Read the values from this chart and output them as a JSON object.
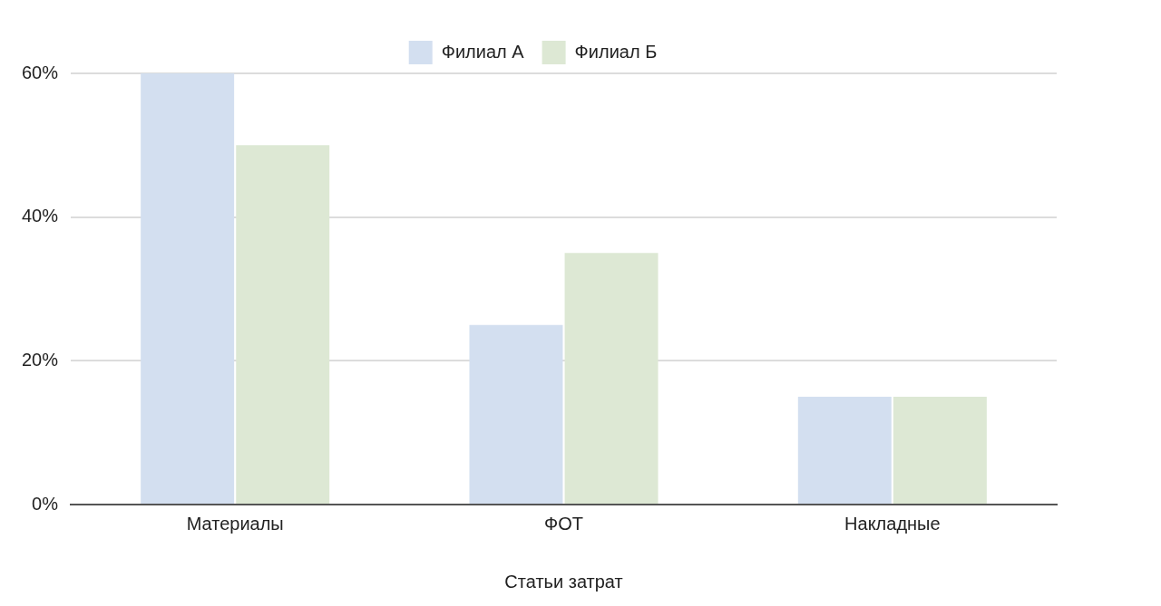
{
  "chart_data": {
    "type": "bar",
    "xlabel": "Статьи затрат",
    "categories": [
      "Материалы",
      "ФОТ",
      "Накладные"
    ],
    "series": [
      {
        "name": "Филиал А",
        "color": "#d3dff0",
        "values": [
          60,
          25,
          15
        ]
      },
      {
        "name": "Филиал Б",
        "color": "#dde8d4",
        "values": [
          50,
          35,
          15
        ]
      }
    ],
    "ylim": [
      0,
      60
    ],
    "yticks": [
      {
        "value": 0,
        "label": "0%"
      },
      {
        "value": 20,
        "label": "20%"
      },
      {
        "value": 40,
        "label": "40%"
      },
      {
        "value": 60,
        "label": "60%"
      }
    ],
    "grid": "y",
    "legend": "top"
  }
}
